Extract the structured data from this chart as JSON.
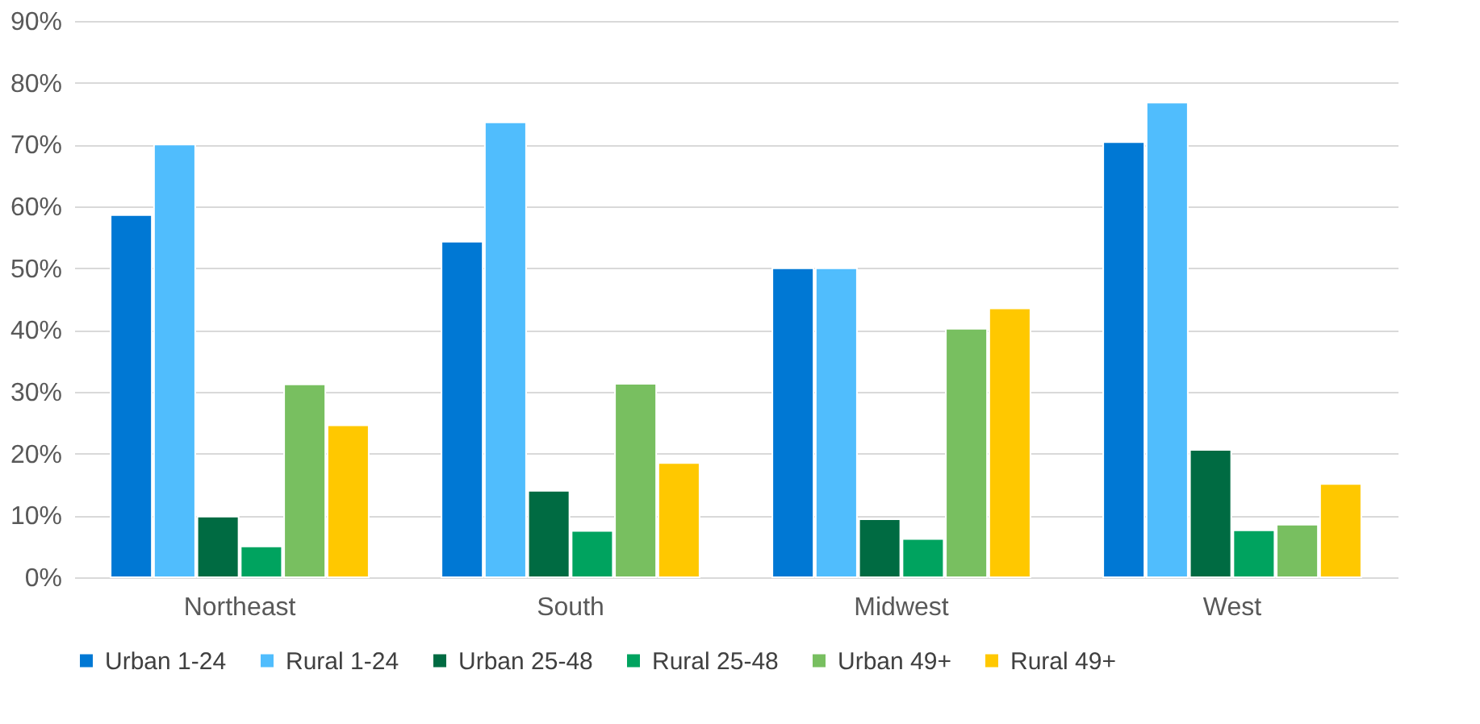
{
  "chart_data": {
    "type": "bar",
    "categories": [
      "Northeast",
      "South",
      "Midwest",
      "West"
    ],
    "series": [
      {
        "name": "Urban 1-24",
        "color": "#0078d4",
        "values": [
          58.6,
          54.3,
          50.0,
          70.4
        ]
      },
      {
        "name": "Rural 1-24",
        "color": "#50bdfd",
        "values": [
          70.0,
          73.6,
          50.0,
          76.8
        ]
      },
      {
        "name": "Urban 25-48",
        "color": "#006b42",
        "values": [
          9.8,
          14.0,
          9.4,
          20.6
        ]
      },
      {
        "name": "Rural 25-48",
        "color": "#00a35f",
        "values": [
          5.0,
          7.5,
          6.2,
          7.6
        ]
      },
      {
        "name": "Urban 49+",
        "color": "#78bf60",
        "values": [
          31.2,
          31.3,
          40.2,
          8.5
        ]
      },
      {
        "name": "Rural 49+",
        "color": "#ffc800",
        "values": [
          24.6,
          18.5,
          43.5,
          15.1
        ]
      }
    ],
    "ylim": [
      0,
      90
    ],
    "yticks": [
      {
        "value": 0,
        "label": "0%"
      },
      {
        "value": 10,
        "label": "10%"
      },
      {
        "value": 20,
        "label": "20%"
      },
      {
        "value": 30,
        "label": "30%"
      },
      {
        "value": 40,
        "label": "40%"
      },
      {
        "value": 50,
        "label": "50%"
      },
      {
        "value": 60,
        "label": "60%"
      },
      {
        "value": 70,
        "label": "70%"
      },
      {
        "value": 80,
        "label": "80%"
      },
      {
        "value": 90,
        "label": "90%"
      }
    ],
    "grid": "y",
    "legend": "bottom"
  }
}
